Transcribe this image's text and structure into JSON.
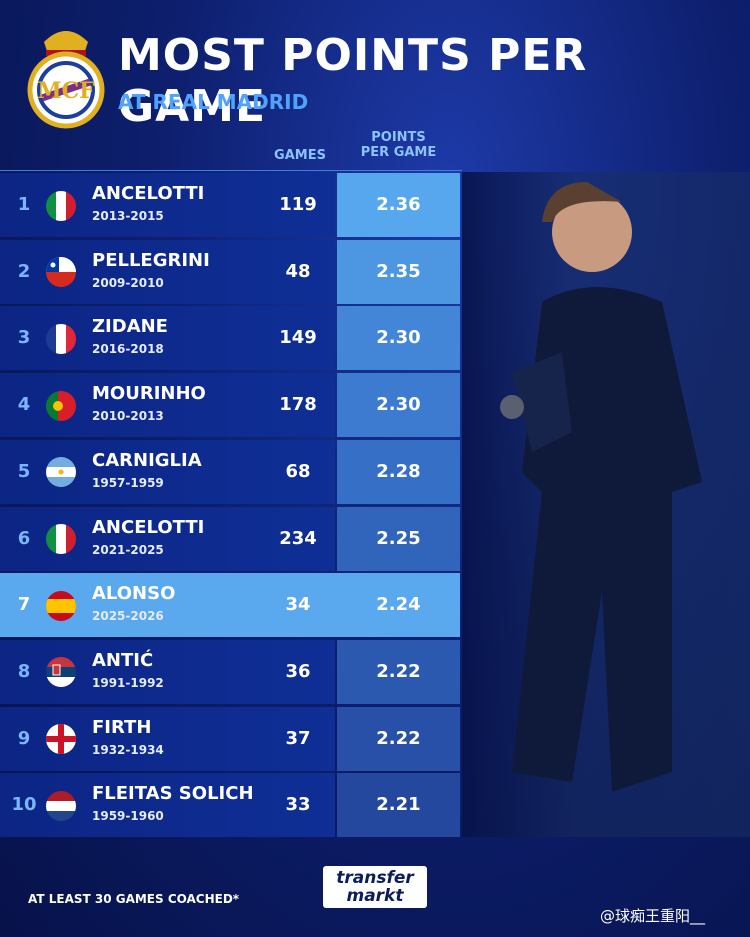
{
  "header": {
    "title": "MOST POINTS PER GAME",
    "subtitle": "AT REAL MADRID"
  },
  "columns": {
    "games": "GAMES",
    "points_per_game": [
      "POINTS",
      "PER GAME"
    ]
  },
  "table": {
    "rows": [
      {
        "rank": 1,
        "name": "ANCELOTTI",
        "years": "2013-2015",
        "games": 119,
        "ppg": "2.36"
      },
      {
        "rank": 2,
        "name": "PELLEGRINI",
        "years": "2009-2010",
        "games": 48,
        "ppg": "2.35"
      },
      {
        "rank": 3,
        "name": "ZIDANE",
        "years": "2016-2018",
        "games": 149,
        "ppg": "2.30"
      },
      {
        "rank": 4,
        "name": "MOURINHO",
        "years": "2010-2013",
        "games": 178,
        "ppg": "2.30"
      },
      {
        "rank": 5,
        "name": "CARNIGLIA",
        "years": "1957-1959",
        "games": 68,
        "ppg": "2.28"
      },
      {
        "rank": 6,
        "name": "ANCELOTTI",
        "years": "2021-2025",
        "games": 234,
        "ppg": "2.25"
      },
      {
        "rank": 7,
        "name": "ALONSO",
        "years": "2025-2026",
        "games": 34,
        "ppg": "2.24"
      },
      {
        "rank": 8,
        "name": "ANTIĆ",
        "years": "1991-1992",
        "games": 36,
        "ppg": "2.22"
      },
      {
        "rank": 9,
        "name": "FIRTH",
        "years": "1932-1934",
        "games": 37,
        "ppg": "2.22"
      },
      {
        "rank": 10,
        "name": "FLEITAS SOLICH",
        "years": "1959-1960",
        "games": 33,
        "ppg": "2.21"
      }
    ]
  },
  "footer": {
    "note": "AT LEAST 30 GAMES COACHED*",
    "logo": [
      "transfer",
      "markt"
    ],
    "watermark": "@球痴王重阳__"
  }
}
